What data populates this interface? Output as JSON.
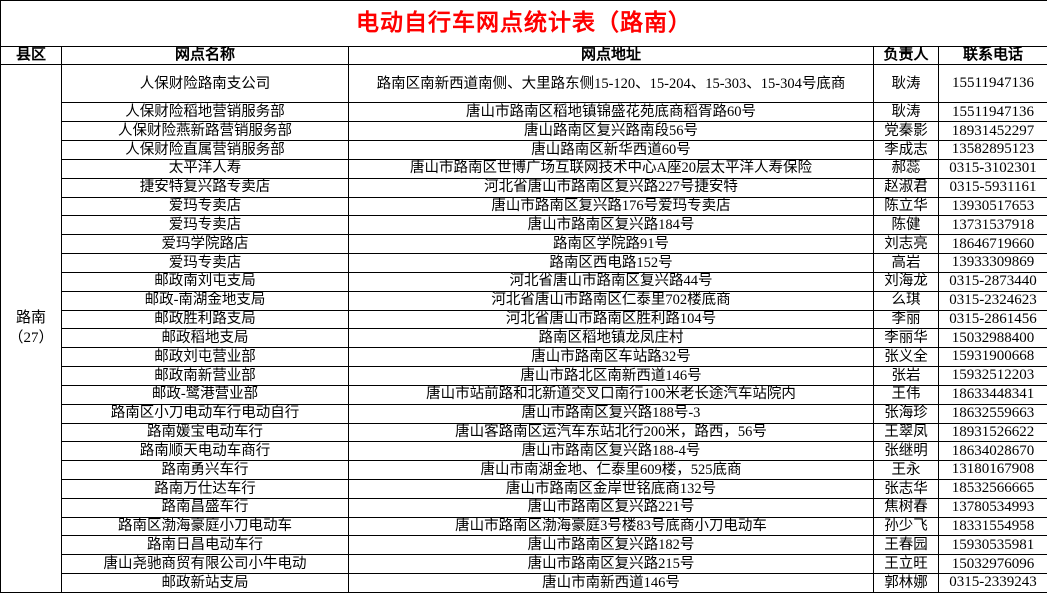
{
  "title": "电动自行车网点统计表（路南）",
  "colors": {
    "title": "#ff0000",
    "border": "#000000",
    "text": "#000000"
  },
  "table": {
    "columns": [
      "县区",
      "网点名称",
      "网点地址",
      "负责人",
      "联系电话"
    ],
    "district": {
      "name": "路南",
      "count": "（27）"
    },
    "rows": [
      {
        "name": "人保财险路南支公司",
        "address": "路南区南新西道南侧、大里路东侧15-120、15-204、15-303、15-304号底商",
        "person": "耿涛",
        "phone": "15511947136"
      },
      {
        "name": "人保财险稻地营销服务部",
        "address": "唐山市路南区稻地镇锦盛花苑底商稻胥路60号",
        "person": "耿涛",
        "phone": "15511947136"
      },
      {
        "name": "人保财险燕新路营销服务部",
        "address": "唐山路南区复兴路南段56号",
        "person": "党秦影",
        "phone": "18931452297"
      },
      {
        "name": "人保财险直属营销服务部",
        "address": "唐山路南区新华西道60号",
        "person": "李成志",
        "phone": "13582895123"
      },
      {
        "name": "太平洋人寿",
        "address": "唐山市路南区世博广场互联网技术中心A座20层太平洋人寿保险",
        "person": "郝蕊",
        "phone": "0315-3102301"
      },
      {
        "name": "捷安特复兴路专卖店",
        "address": "河北省唐山市路南区复兴路227号捷安特",
        "person": "赵淑君",
        "phone": "0315-5931161"
      },
      {
        "name": "爱玛专卖店",
        "address": "唐山市路南区复兴路176号爱玛专卖店",
        "person": "陈立华",
        "phone": "13930517653"
      },
      {
        "name": "爱玛专卖店",
        "address": "唐山市路南区复兴路184号",
        "person": "陈健",
        "phone": "13731537918"
      },
      {
        "name": "爱玛学院路店",
        "address": "路南区学院路91号",
        "person": "刘志亮",
        "phone": "18646719660"
      },
      {
        "name": "爱玛专卖店",
        "address": "路南区西电路152号",
        "person": "高岩",
        "phone": "13933309869"
      },
      {
        "name": "邮政南刘屯支局",
        "address": "河北省唐山市路南区复兴路44号",
        "person": "刘海龙",
        "phone": "0315-2873440"
      },
      {
        "name": "邮政-南湖金地支局",
        "address": "河北省唐山市路南区仁泰里702楼底商",
        "person": "么琪",
        "phone": "0315-2324623"
      },
      {
        "name": "邮政胜利路支局",
        "address": "河北省唐山市路南区胜利路104号",
        "person": "李丽",
        "phone": "0315-2861456"
      },
      {
        "name": "邮政稻地支局",
        "address": "路南区稻地镇龙凤庄村",
        "person": "李丽华",
        "phone": "15032988400"
      },
      {
        "name": "邮政刘屯营业部",
        "address": "唐山市路南区车站路32号",
        "person": "张义全",
        "phone": "15931900668"
      },
      {
        "name": "邮政南新营业部",
        "address": "唐山市路北区南新西道146号",
        "person": "张岩",
        "phone": "15932512203"
      },
      {
        "name": "邮政-鹭港营业部",
        "address": "唐山市站前路和北新道交叉口南行100米老长途汽车站院内",
        "person": "王伟",
        "phone": "18633448341"
      },
      {
        "name": "路南区小刀电动车行电动自行",
        "address": "唐山市路南区复兴路188号-3",
        "person": "张海珍",
        "phone": "18632559663"
      },
      {
        "name": "路南媛宝电动车行",
        "address": "唐山客路南区运汽车东站北行200米，路西，56号",
        "person": "王翠凤",
        "phone": "18931526622"
      },
      {
        "name": "路南顺天电动车商行",
        "address": "唐山市路南区复兴路188-4号",
        "person": "张继明",
        "phone": "18634028670"
      },
      {
        "name": "路南勇兴车行",
        "address": "唐山市南湖金地、仁泰里609楼，525底商",
        "person": "王永",
        "phone": "13180167908"
      },
      {
        "name": "路南万仕达车行",
        "address": "唐山市路南区金岸世铭底商132号",
        "person": "张志华",
        "phone": "18532566665"
      },
      {
        "name": "路南昌盛车行",
        "address": "唐山市路南区复兴路221号",
        "person": "焦树春",
        "phone": "13780534993"
      },
      {
        "name": "路南区渤海豪庭小刀电动车",
        "address": "唐山市路南区渤海豪庭3号楼83号底商小刀电动车",
        "person": "孙少飞",
        "phone": "18331554958"
      },
      {
        "name": "路南日昌电动车行",
        "address": "唐山市路南区复兴路182号",
        "person": "王春园",
        "phone": "15930535981"
      },
      {
        "name": "唐山尧驰商贸有限公司小牛电动",
        "address": "唐山市路南区复兴路215号",
        "person": "王立旺",
        "phone": "15032976096"
      },
      {
        "name": "邮政新站支局",
        "address": "唐山市南新西道146号",
        "person": "郭林娜",
        "phone": "0315-2339243"
      }
    ]
  }
}
